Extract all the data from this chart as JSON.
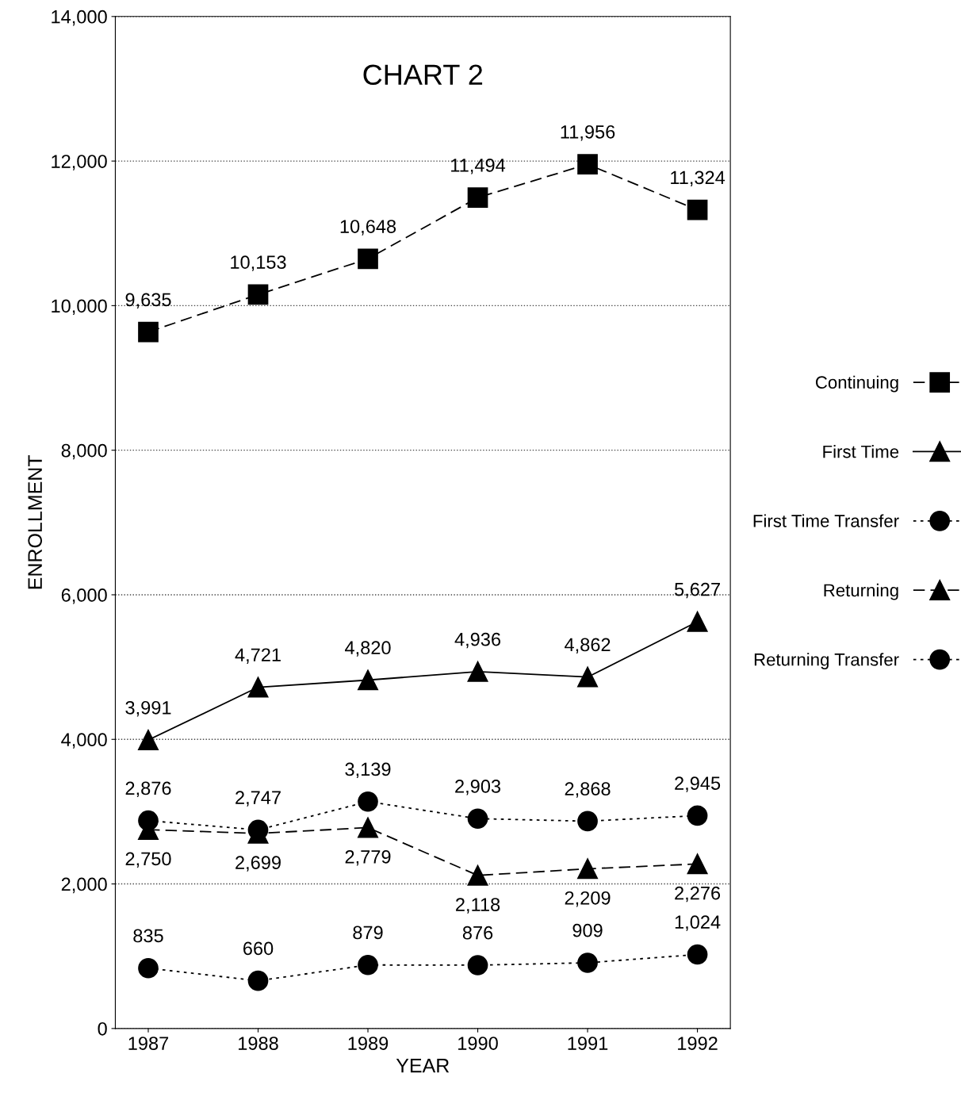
{
  "chart_data": {
    "type": "line",
    "title": "CHART 2",
    "xlabel": "YEAR",
    "ylabel": "ENROLLMENT",
    "categories": [
      "1987",
      "1988",
      "1989",
      "1990",
      "1991",
      "1992"
    ],
    "series": [
      {
        "name": "Continuing",
        "color": "#000000",
        "marker": "square",
        "line_style": "dashed",
        "values": [
          9635,
          10153,
          10648,
          11494,
          11956,
          11324
        ],
        "value_labels": [
          "9,635",
          "10,153",
          "10,648",
          "11,494",
          "11,956",
          "11,324"
        ]
      },
      {
        "name": "First Time",
        "color": "#000000",
        "marker": "triangle",
        "line_style": "solid",
        "values": [
          3991,
          4721,
          4820,
          4936,
          4862,
          5627
        ],
        "value_labels": [
          "3,991",
          "4,721",
          "4,820",
          "4,936",
          "4,862",
          "5,627"
        ]
      },
      {
        "name": "First Time Transfer",
        "color": "#000000",
        "marker": "circle",
        "line_style": "dotted",
        "values": [
          2876,
          2747,
          3139,
          2903,
          2868,
          2945
        ],
        "value_labels": [
          "2,876",
          "2,747",
          "3,139",
          "2,903",
          "2,868",
          "2,945"
        ]
      },
      {
        "name": "Returning",
        "color": "#000000",
        "marker": "triangle",
        "line_style": "dashed",
        "values": [
          2750,
          2699,
          2779,
          2118,
          2209,
          2276
        ],
        "value_labels": [
          "2,750",
          "2,699",
          "2,779",
          "2,118",
          "2,209",
          "2,276"
        ]
      },
      {
        "name": "Returning Transfer",
        "color": "#000000",
        "marker": "circle",
        "line_style": "dotted",
        "values": [
          835,
          660,
          879,
          876,
          909,
          1024
        ],
        "value_labels": [
          "835",
          "660",
          "879",
          "876",
          "909",
          "1,024"
        ]
      }
    ],
    "ylim": [
      0,
      14000
    ],
    "yticks": [
      {
        "value": 0,
        "label": "0"
      },
      {
        "value": 2000,
        "label": "2,000"
      },
      {
        "value": 4000,
        "label": "4,000"
      },
      {
        "value": 6000,
        "label": "6,000"
      },
      {
        "value": 8000,
        "label": "8,000"
      },
      {
        "value": 10000,
        "label": "10,000"
      },
      {
        "value": 12000,
        "label": "12,000"
      },
      {
        "value": 14000,
        "label": "14,000"
      }
    ],
    "grid": "y",
    "legend": "right"
  }
}
